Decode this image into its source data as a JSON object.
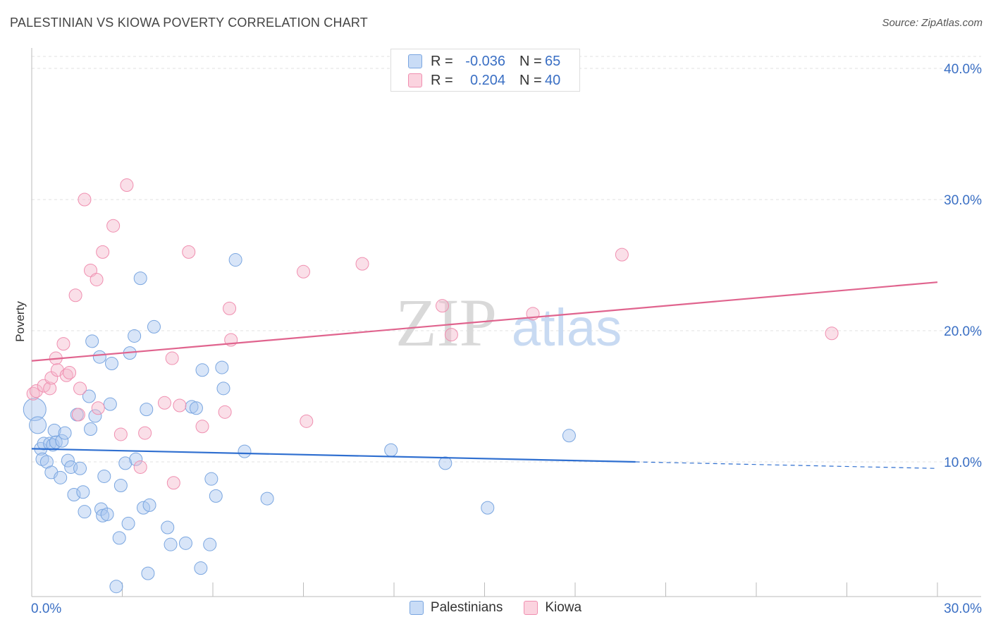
{
  "title": "PALESTINIAN VS KIOWA POVERTY CORRELATION CHART",
  "source": "Source: ZipAtlas.com",
  "watermark": {
    "zip": "ZIP",
    "atlas": "atlas"
  },
  "stats": [
    {
      "r_label": "R =",
      "r_value": "-0.036",
      "n_label": "N =",
      "n_value": "65",
      "color": "#a8c6ef"
    },
    {
      "r_label": "R =",
      "r_value": "0.204",
      "n_label": "N =",
      "n_value": "40",
      "color": "#f5b8cb"
    }
  ],
  "legend": [
    {
      "label": "Palestinians",
      "color": "#a8c6ef"
    },
    {
      "label": "Kiowa",
      "color": "#f5b8cb"
    }
  ],
  "chart_data": {
    "type": "scatter",
    "title": "PALESTINIAN VS KIOWA POVERTY CORRELATION CHART",
    "xlabel": "",
    "ylabel": "Poverty",
    "xlim": [
      0,
      30
    ],
    "ylim": [
      0,
      40
    ],
    "x_tick_labels": [
      {
        "value": 0,
        "label": "0.0%"
      },
      {
        "value": 30,
        "label": "30.0%"
      }
    ],
    "y_tick_labels": [
      {
        "value": 10,
        "label": "10.0%"
      },
      {
        "value": 20,
        "label": "20.0%"
      },
      {
        "value": 30,
        "label": "30.0%"
      },
      {
        "value": 40,
        "label": "40.0%"
      }
    ],
    "grid": true,
    "series": [
      {
        "name": "Palestinians",
        "color": "#7aa6e0",
        "trend": {
          "x": [
            0,
            20
          ],
          "y": [
            11.0,
            10.0
          ],
          "dashed_to": [
            30,
            9.5
          ],
          "color": "#2f6fd0"
        },
        "points": [
          [
            0.1,
            14.0
          ],
          [
            0.2,
            12.8
          ],
          [
            0.3,
            11.0
          ],
          [
            0.35,
            10.2
          ],
          [
            0.4,
            11.4
          ],
          [
            0.5,
            10.0
          ],
          [
            0.6,
            11.4
          ],
          [
            0.65,
            9.2
          ],
          [
            0.7,
            11.3
          ],
          [
            0.75,
            12.4
          ],
          [
            0.8,
            11.5
          ],
          [
            0.95,
            8.8
          ],
          [
            1.0,
            11.6
          ],
          [
            1.1,
            12.2
          ],
          [
            1.2,
            10.1
          ],
          [
            1.3,
            9.6
          ],
          [
            1.4,
            7.5
          ],
          [
            1.5,
            13.6
          ],
          [
            1.6,
            9.5
          ],
          [
            1.7,
            7.7
          ],
          [
            1.75,
            6.2
          ],
          [
            1.9,
            15.0
          ],
          [
            1.95,
            12.5
          ],
          [
            2.0,
            19.2
          ],
          [
            2.1,
            13.5
          ],
          [
            2.25,
            18.0
          ],
          [
            2.3,
            6.4
          ],
          [
            2.35,
            5.9
          ],
          [
            2.4,
            8.9
          ],
          [
            2.5,
            6.0
          ],
          [
            2.6,
            14.4
          ],
          [
            2.65,
            17.5
          ],
          [
            2.8,
            0.5
          ],
          [
            2.9,
            4.2
          ],
          [
            2.95,
            8.2
          ],
          [
            3.1,
            9.9
          ],
          [
            3.2,
            5.3
          ],
          [
            3.25,
            18.3
          ],
          [
            3.4,
            19.6
          ],
          [
            3.45,
            10.2
          ],
          [
            3.6,
            24.0
          ],
          [
            3.7,
            6.5
          ],
          [
            3.8,
            14.0
          ],
          [
            3.85,
            1.5
          ],
          [
            3.9,
            6.7
          ],
          [
            4.05,
            20.3
          ],
          [
            4.5,
            5.0
          ],
          [
            4.6,
            3.7
          ],
          [
            5.1,
            3.8
          ],
          [
            5.3,
            14.2
          ],
          [
            5.45,
            14.1
          ],
          [
            5.6,
            1.9
          ],
          [
            5.65,
            17.0
          ],
          [
            5.9,
            3.7
          ],
          [
            5.95,
            8.7
          ],
          [
            6.1,
            7.4
          ],
          [
            6.3,
            17.2
          ],
          [
            6.35,
            15.6
          ],
          [
            6.75,
            25.4
          ],
          [
            7.05,
            10.8
          ],
          [
            7.8,
            7.2
          ],
          [
            11.9,
            10.9
          ],
          [
            13.7,
            9.9
          ],
          [
            15.1,
            6.5
          ],
          [
            17.8,
            12.0
          ]
        ]
      },
      {
        "name": "Kiowa",
        "color": "#f08fb0",
        "trend": {
          "x": [
            0,
            30
          ],
          "y": [
            17.7,
            23.7
          ],
          "color": "#e0648e"
        },
        "points": [
          [
            0.05,
            15.2
          ],
          [
            0.15,
            15.4
          ],
          [
            0.4,
            15.8
          ],
          [
            0.6,
            15.6
          ],
          [
            0.65,
            16.4
          ],
          [
            0.8,
            17.9
          ],
          [
            0.85,
            17.0
          ],
          [
            1.05,
            19.0
          ],
          [
            1.15,
            16.6
          ],
          [
            1.25,
            16.8
          ],
          [
            1.45,
            22.7
          ],
          [
            1.55,
            13.6
          ],
          [
            1.6,
            15.6
          ],
          [
            1.75,
            30.0
          ],
          [
            1.95,
            24.6
          ],
          [
            2.15,
            23.9
          ],
          [
            2.2,
            14.1
          ],
          [
            2.35,
            26.0
          ],
          [
            2.7,
            28.0
          ],
          [
            2.95,
            12.1
          ],
          [
            3.15,
            31.1
          ],
          [
            3.6,
            9.6
          ],
          [
            3.75,
            12.2
          ],
          [
            4.4,
            14.5
          ],
          [
            4.65,
            17.9
          ],
          [
            4.7,
            8.4
          ],
          [
            4.9,
            14.3
          ],
          [
            5.2,
            26.0
          ],
          [
            5.65,
            12.7
          ],
          [
            6.4,
            13.8
          ],
          [
            6.55,
            21.7
          ],
          [
            6.6,
            19.3
          ],
          [
            9.0,
            24.5
          ],
          [
            9.1,
            13.1
          ],
          [
            10.95,
            25.1
          ],
          [
            13.6,
            21.9
          ],
          [
            13.9,
            19.7
          ],
          [
            16.6,
            21.3
          ],
          [
            19.55,
            25.8
          ],
          [
            26.5,
            19.8
          ]
        ]
      }
    ]
  }
}
